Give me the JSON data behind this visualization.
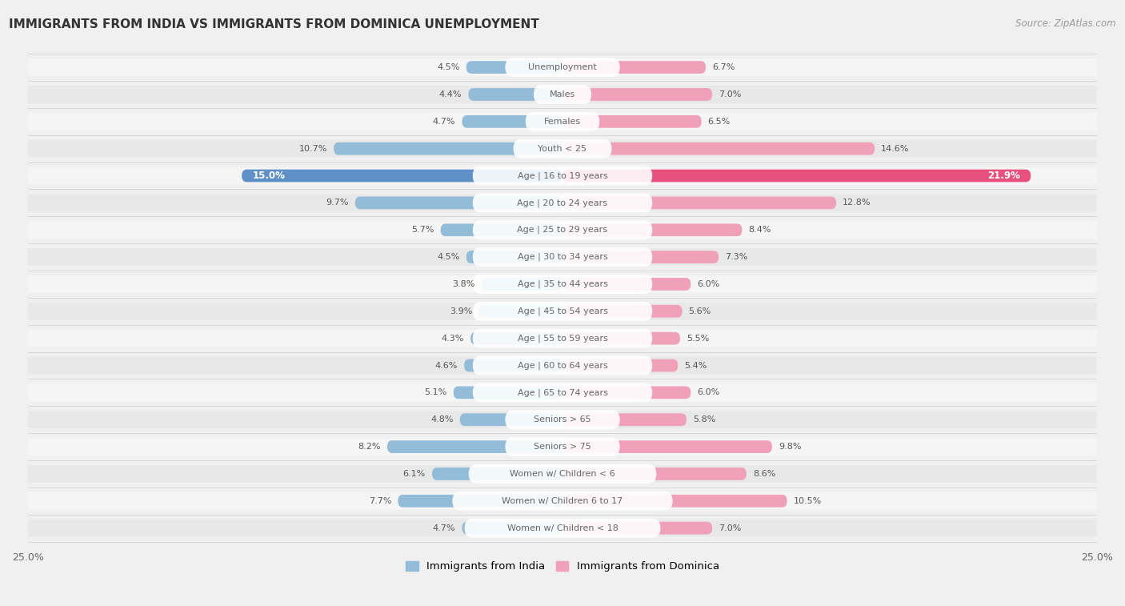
{
  "title": "IMMIGRANTS FROM INDIA VS IMMIGRANTS FROM DOMINICA UNEMPLOYMENT",
  "source": "Source: ZipAtlas.com",
  "categories": [
    "Unemployment",
    "Males",
    "Females",
    "Youth < 25",
    "Age | 16 to 19 years",
    "Age | 20 to 24 years",
    "Age | 25 to 29 years",
    "Age | 30 to 34 years",
    "Age | 35 to 44 years",
    "Age | 45 to 54 years",
    "Age | 55 to 59 years",
    "Age | 60 to 64 years",
    "Age | 65 to 74 years",
    "Seniors > 65",
    "Seniors > 75",
    "Women w/ Children < 6",
    "Women w/ Children 6 to 17",
    "Women w/ Children < 18"
  ],
  "india_values": [
    4.5,
    4.4,
    4.7,
    10.7,
    15.0,
    9.7,
    5.7,
    4.5,
    3.8,
    3.9,
    4.3,
    4.6,
    5.1,
    4.8,
    8.2,
    6.1,
    7.7,
    4.7
  ],
  "dominica_values": [
    6.7,
    7.0,
    6.5,
    14.6,
    21.9,
    12.8,
    8.4,
    7.3,
    6.0,
    5.6,
    5.5,
    5.4,
    6.0,
    5.8,
    9.8,
    8.6,
    10.5,
    7.0
  ],
  "india_color": "#92bcd8",
  "dominica_color": "#f0a0b8",
  "india_highlight_color": "#6090c8",
  "dominica_highlight_color": "#e85080",
  "row_bg_even": "#f5f5f5",
  "row_bg_odd": "#e8e8e8",
  "background_color": "#f0f0f0",
  "highlight_row": 4,
  "xlim": 25.0,
  "legend_india": "Immigrants from India",
  "legend_dominica": "Immigrants from Dominica",
  "label_color": "#666666",
  "value_color": "#555555"
}
